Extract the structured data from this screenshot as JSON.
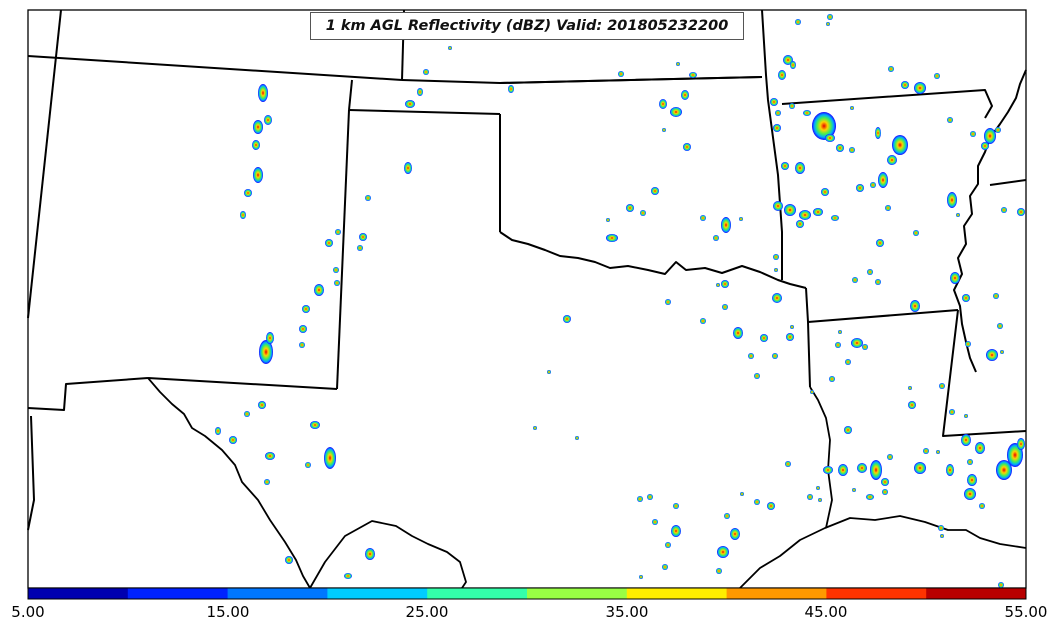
{
  "title": "1 km AGL Reflectivity (dBZ) Valid: 201805232200",
  "colorbar": {
    "labels": [
      "5.00",
      "15.00",
      "25.00",
      "35.00",
      "45.00",
      "55.00"
    ],
    "min": 5,
    "max": 55,
    "colors": [
      "#0000b0",
      "#0022ff",
      "#0077ff",
      "#00ccff",
      "#33ffaa",
      "#99ff44",
      "#ffee00",
      "#ff9900",
      "#ff3300",
      "#b80000"
    ]
  }
}
